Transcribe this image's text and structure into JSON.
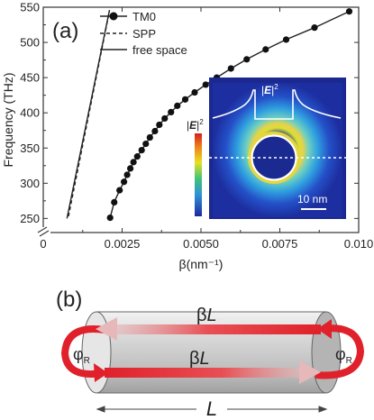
{
  "panel_a": {
    "label": "(a)",
    "ylabel": "Frequency (THz)",
    "xlabel": "β(nm⁻¹)",
    "legend": [
      {
        "key": "tm0",
        "label": "TM0",
        "style": "line-dot"
      },
      {
        "key": "spp",
        "label": "SPP",
        "style": "dashed"
      },
      {
        "key": "free",
        "label": "free space",
        "style": "solid"
      }
    ],
    "inset": {
      "field_label": "|E|²",
      "colorbar_label": "|E|²",
      "scale_bar": "10 nm",
      "profile_label": "|E|²"
    }
  },
  "panel_b": {
    "label": "(b)",
    "arrow_top": "βL",
    "arrow_bottom": "βL",
    "phase_left": "φR",
    "phase_right": "φR",
    "length": "L"
  },
  "chart_data": {
    "type": "line",
    "xlabel": "β(nm⁻¹)",
    "ylabel": "Frequency (THz)",
    "xlim": [
      0,
      0.01
    ],
    "ylim": [
      230,
      550
    ],
    "y_axis_break": true,
    "x_ticks": [
      "0",
      "0.0025",
      "0.0050",
      "0.0075",
      "0.010"
    ],
    "y_ticks": [
      "250",
      "300",
      "350",
      "400",
      "450",
      "500",
      "550"
    ],
    "legend_position": "top-left",
    "series": [
      {
        "name": "TM0",
        "style": "line-dot",
        "x": [
          0.00212,
          0.00225,
          0.00242,
          0.00256,
          0.00266,
          0.00276,
          0.00286,
          0.00298,
          0.00312,
          0.00325,
          0.00338,
          0.00354,
          0.00368,
          0.00385,
          0.00405,
          0.00425,
          0.0045,
          0.0048,
          0.00515,
          0.0055,
          0.00595,
          0.00645,
          0.00705,
          0.0077,
          0.0086,
          0.0097
        ],
        "y": [
          251,
          273,
          290,
          302,
          312,
          321,
          330,
          338,
          347,
          356,
          365,
          374,
          383,
          392,
          401,
          410,
          419,
          429,
          440,
          450,
          463,
          476,
          490,
          504,
          521,
          544
        ]
      },
      {
        "name": "SPP",
        "style": "dashed",
        "x": [
          0.0008,
          0.0021
        ],
        "y": [
          253,
          545
        ]
      },
      {
        "name": "free space",
        "style": "solid",
        "x": [
          0.00075,
          0.0021
        ],
        "y": [
          250,
          546
        ]
      }
    ]
  }
}
